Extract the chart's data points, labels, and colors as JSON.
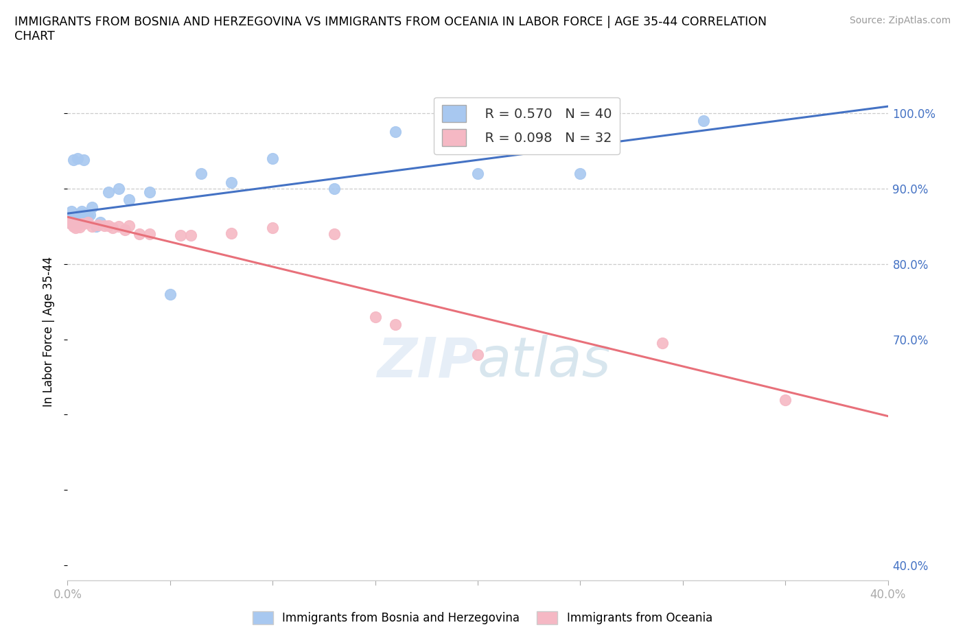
{
  "title": "IMMIGRANTS FROM BOSNIA AND HERZEGOVINA VS IMMIGRANTS FROM OCEANIA IN LABOR FORCE | AGE 35-44 CORRELATION\nCHART",
  "source": "Source: ZipAtlas.com",
  "ylabel": "In Labor Force | Age 35-44",
  "xlim": [
    0.0,
    0.4
  ],
  "ylim": [
    0.38,
    1.04
  ],
  "blue_R": 0.57,
  "blue_N": 40,
  "pink_R": 0.098,
  "pink_N": 32,
  "blue_color": "#A8C8F0",
  "pink_color": "#F5B8C4",
  "blue_line_color": "#4472C4",
  "pink_line_color": "#E8707A",
  "yticks": [
    0.4,
    0.7,
    0.8,
    0.9,
    1.0
  ],
  "ytick_labels": [
    "40.0%",
    "70.0%",
    "80.0%",
    "90.0%",
    "100.0%"
  ],
  "grid_yticks": [
    0.9,
    1.0
  ],
  "xticks": [
    0.0,
    0.05,
    0.1,
    0.15,
    0.2,
    0.25,
    0.3,
    0.35,
    0.4
  ],
  "blue_x": [
    0.001,
    0.001,
    0.002,
    0.002,
    0.003,
    0.003,
    0.003,
    0.004,
    0.004,
    0.004,
    0.005,
    0.005,
    0.005,
    0.006,
    0.006,
    0.007,
    0.007,
    0.008,
    0.009,
    0.01,
    0.011,
    0.012,
    0.014,
    0.016,
    0.02,
    0.025,
    0.03,
    0.04,
    0.05,
    0.065,
    0.08,
    0.1,
    0.13,
    0.16,
    0.2,
    0.25,
    0.31,
    0.003,
    0.005,
    0.008
  ],
  "blue_y": [
    0.855,
    0.862,
    0.86,
    0.87,
    0.855,
    0.857,
    0.858,
    0.855,
    0.857,
    0.856,
    0.858,
    0.854,
    0.856,
    0.857,
    0.854,
    0.866,
    0.87,
    0.862,
    0.858,
    0.863,
    0.865,
    0.875,
    0.85,
    0.855,
    0.895,
    0.9,
    0.885,
    0.895,
    0.76,
    0.92,
    0.908,
    0.94,
    0.9,
    0.975,
    0.92,
    0.92,
    0.99,
    0.938,
    0.94,
    0.938
  ],
  "pink_x": [
    0.001,
    0.002,
    0.003,
    0.003,
    0.004,
    0.004,
    0.005,
    0.005,
    0.006,
    0.007,
    0.008,
    0.01,
    0.012,
    0.015,
    0.018,
    0.02,
    0.022,
    0.025,
    0.028,
    0.03,
    0.035,
    0.04,
    0.055,
    0.06,
    0.08,
    0.1,
    0.13,
    0.15,
    0.16,
    0.2,
    0.29,
    0.35
  ],
  "pink_y": [
    0.854,
    0.855,
    0.85,
    0.853,
    0.852,
    0.848,
    0.852,
    0.851,
    0.849,
    0.853,
    0.853,
    0.855,
    0.85,
    0.852,
    0.851,
    0.851,
    0.848,
    0.85,
    0.845,
    0.851,
    0.84,
    0.84,
    0.838,
    0.838,
    0.841,
    0.848,
    0.84,
    0.73,
    0.72,
    0.68,
    0.695,
    0.62
  ]
}
